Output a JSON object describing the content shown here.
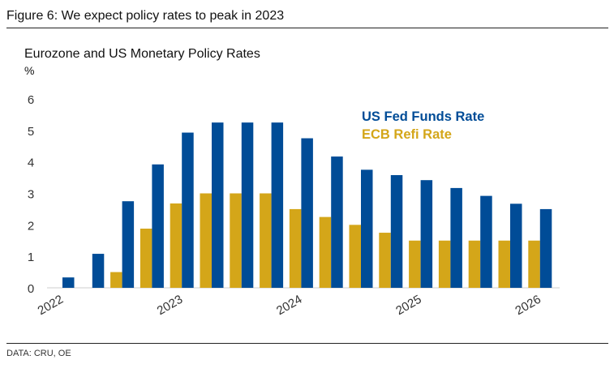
{
  "figure_title": "Figure 6: We expect policy rates to peak in 2023",
  "source": "DATA: CRU, OE",
  "chart_data": {
    "type": "bar",
    "title": "Eurozone and US Monetary Policy Rates",
    "ylabel": "%",
    "xlabel": "",
    "ylim": [
      0,
      6
    ],
    "yticks": [
      0,
      1,
      2,
      3,
      4,
      5,
      6
    ],
    "grid": false,
    "legend_position": "top-right",
    "categories": [
      "2022 Q1",
      "2022 Q2",
      "2022 Q3",
      "2022 Q4",
      "2023 Q1",
      "2023 Q2",
      "2023 Q3",
      "2023 Q4",
      "2024 Q1",
      "2024 Q2",
      "2024 Q3",
      "2024 Q4",
      "2025 Q1",
      "2025 Q2",
      "2025 Q3",
      "2025 Q4",
      "2026 Q1"
    ],
    "xtick_labels": [
      {
        "label": "2022",
        "index": 0
      },
      {
        "label": "2023",
        "index": 4
      },
      {
        "label": "2024",
        "index": 8
      },
      {
        "label": "2025",
        "index": 12
      },
      {
        "label": "2026",
        "index": 16
      }
    ],
    "series": [
      {
        "name": "ECB Refi Rate",
        "color": "#D4A619",
        "values": [
          0,
          0,
          0.5,
          1.88,
          2.68,
          3.0,
          3.0,
          3.0,
          2.5,
          2.25,
          2.0,
          1.75,
          1.5,
          1.5,
          1.5,
          1.5,
          1.5
        ]
      },
      {
        "name": "US Fed Funds Rate",
        "color": "#004C97",
        "values": [
          0.33,
          1.08,
          2.75,
          3.92,
          4.93,
          5.25,
          5.25,
          5.25,
          4.75,
          4.17,
          3.75,
          3.58,
          3.42,
          3.17,
          2.92,
          2.67,
          2.5
        ]
      }
    ]
  }
}
